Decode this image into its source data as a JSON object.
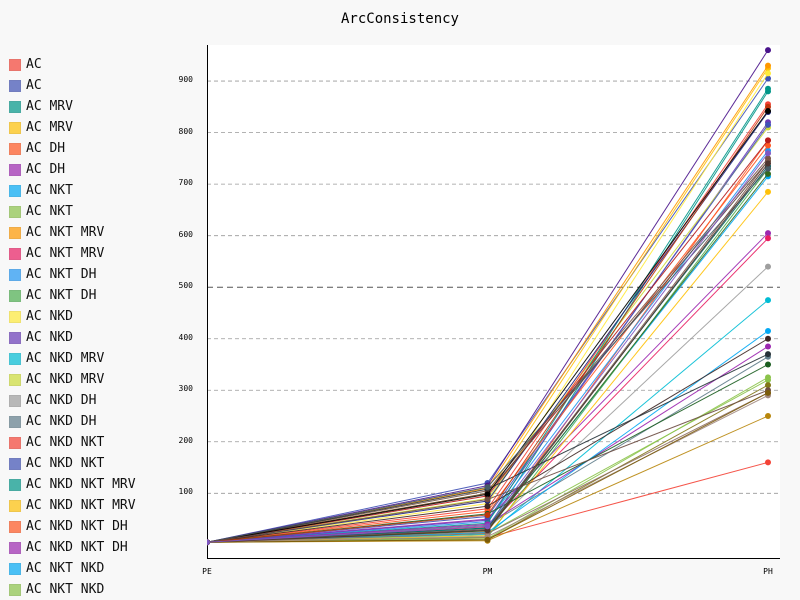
{
  "chart_data": {
    "type": "line",
    "title": "ArcConsistency",
    "xlabel": "",
    "ylabel": "",
    "categories": [
      "PE",
      "PM",
      "PH"
    ],
    "ylim": [
      -10,
      970
    ],
    "yticks": [
      100,
      200,
      300,
      400,
      500,
      600,
      700,
      800,
      900
    ],
    "major_ytick": 500,
    "grid": true,
    "legend_position": "left",
    "series": [
      {
        "name": "AC",
        "color": "#f44336",
        "values": [
          5,
          14,
          160
        ]
      },
      {
        "name": "AC",
        "color": "#3f51b5",
        "values": [
          5,
          120,
          905
        ]
      },
      {
        "name": "AC MRV",
        "color": "#009688",
        "values": [
          5,
          32,
          880
        ]
      },
      {
        "name": "AC MRV",
        "color": "#ffc107",
        "values": [
          5,
          100,
          925
        ]
      },
      {
        "name": "AC DH",
        "color": "#ff5722",
        "values": [
          5,
          25,
          785
        ]
      },
      {
        "name": "AC DH",
        "color": "#9c27b0",
        "values": [
          5,
          50,
          605
        ]
      },
      {
        "name": "AC NKT",
        "color": "#03a9f4",
        "values": [
          5,
          28,
          715
        ]
      },
      {
        "name": "AC NKT",
        "color": "#8bc34a",
        "values": [
          5,
          22,
          320
        ]
      },
      {
        "name": "AC NKT MRV",
        "color": "#ff9800",
        "values": [
          5,
          110,
          930
        ]
      },
      {
        "name": "AC NKT MRV",
        "color": "#e91e63",
        "values": [
          5,
          35,
          595
        ]
      },
      {
        "name": "AC NKT DH",
        "color": "#2196f3",
        "values": [
          5,
          45,
          765
        ]
      },
      {
        "name": "AC NKT DH",
        "color": "#4caf50",
        "values": [
          5,
          15,
          730
        ]
      },
      {
        "name": "AC NKD",
        "color": "#ffeb3b",
        "values": [
          5,
          80,
          915
        ]
      },
      {
        "name": "AC NKD",
        "color": "#673ab7",
        "values": [
          5,
          48,
          820
        ]
      },
      {
        "name": "AC NKD MRV",
        "color": "#00bcd4",
        "values": [
          5,
          20,
          475
        ]
      },
      {
        "name": "AC NKD MRV",
        "color": "#cddc39",
        "values": [
          5,
          90,
          810
        ]
      },
      {
        "name": "AC NKD DH",
        "color": "#9e9e9e",
        "values": [
          5,
          30,
          540
        ]
      },
      {
        "name": "AC NKD DH",
        "color": "#607d8b",
        "values": [
          5,
          38,
          365
        ]
      },
      {
        "name": "AC NKD NKT",
        "color": "#f44336",
        "values": [
          5,
          70,
          855
        ]
      },
      {
        "name": "AC NKD NKT",
        "color": "#3f51b5",
        "values": [
          5,
          55,
          815
        ]
      },
      {
        "name": "AC NKD NKT MRV",
        "color": "#009688",
        "values": [
          5,
          42,
          885
        ]
      },
      {
        "name": "AC NKD NKT MRV",
        "color": "#ffc107",
        "values": [
          5,
          18,
          685
        ]
      },
      {
        "name": "AC NKD NKT DH",
        "color": "#ff5722",
        "values": [
          5,
          65,
          775
        ]
      },
      {
        "name": "AC NKD NKT DH",
        "color": "#9c27b0",
        "values": [
          5,
          40,
          385
        ]
      },
      {
        "name": "AC NKT NKD",
        "color": "#03a9f4",
        "values": [
          5,
          24,
          415
        ]
      },
      {
        "name": "AC NKT NKD",
        "color": "#8bc34a",
        "values": [
          5,
          12,
          325
        ]
      },
      {
        "name": "",
        "color": "#795548",
        "values": [
          5,
          105,
          750
        ]
      },
      {
        "name": "",
        "color": "#1a237e",
        "values": [
          5,
          85,
          840
        ]
      },
      {
        "name": "",
        "color": "#4a148c",
        "values": [
          5,
          115,
          960
        ]
      },
      {
        "name": "",
        "color": "#b71c1c",
        "values": [
          5,
          95,
          785
        ]
      },
      {
        "name": "",
        "color": "#006064",
        "values": [
          5,
          33,
          735
        ]
      },
      {
        "name": "",
        "color": "#1b5e20",
        "values": [
          5,
          60,
          350
        ]
      },
      {
        "name": "",
        "color": "#827717",
        "values": [
          5,
          10,
          310
        ]
      },
      {
        "name": "",
        "color": "#3e2723",
        "values": [
          5,
          75,
          400
        ]
      },
      {
        "name": "",
        "color": "#263238",
        "values": [
          5,
          108,
          370
        ]
      },
      {
        "name": "",
        "color": "#33691e",
        "values": [
          5,
          27,
          720
        ]
      },
      {
        "name": "",
        "color": "#bf360c",
        "values": [
          5,
          58,
          850
        ]
      },
      {
        "name": "",
        "color": "#5d4037",
        "values": [
          5,
          100,
          745
        ]
      },
      {
        "name": "",
        "color": "#000000",
        "values": [
          5,
          98,
          842
        ]
      },
      {
        "name": "",
        "color": "#455a64",
        "values": [
          5,
          112,
          730
        ]
      },
      {
        "name": "",
        "color": "#6d4c41",
        "values": [
          5,
          88,
          300
        ]
      },
      {
        "name": "",
        "color": "#8d6e63",
        "values": [
          5,
          22,
          295
        ]
      },
      {
        "name": "",
        "color": "#a1887f",
        "values": [
          5,
          16,
          290
        ]
      },
      {
        "name": "",
        "color": "#b8860b",
        "values": [
          5,
          8,
          250
        ]
      },
      {
        "name": "",
        "color": "#7b5c0a",
        "values": [
          5,
          10,
          295
        ]
      },
      {
        "name": "",
        "color": "#795548",
        "values": [
          5,
          30,
          745
        ]
      },
      {
        "name": "",
        "color": "#4e342e",
        "values": [
          5,
          28,
          740
        ]
      },
      {
        "name": "",
        "color": "#7e57c2",
        "values": [
          5,
          36,
          760
        ]
      }
    ]
  }
}
